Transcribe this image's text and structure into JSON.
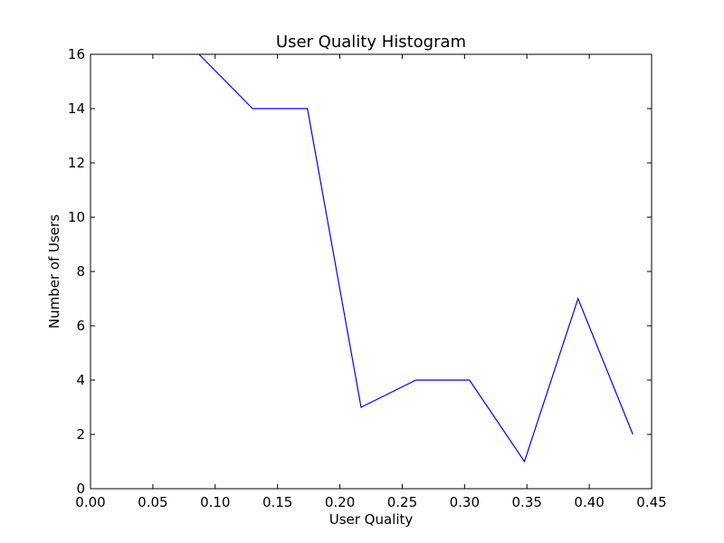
{
  "chart_data": {
    "type": "line",
    "title": "User Quality Histogram",
    "xlabel": "User Quality",
    "ylabel": "Number of Users",
    "xlim": [
      0,
      0.45
    ],
    "ylim": [
      0,
      16
    ],
    "x_ticks": [
      "0.00",
      "0.05",
      "0.10",
      "0.15",
      "0.20",
      "0.25",
      "0.30",
      "0.35",
      "0.40",
      "0.45"
    ],
    "y_ticks": [
      "0",
      "2",
      "4",
      "6",
      "8",
      "10",
      "12",
      "14",
      "16"
    ],
    "grid": false,
    "series": [
      {
        "color": "#0000ff",
        "x": [
          0.087,
          0.13,
          0.174,
          0.217,
          0.261,
          0.304,
          0.348,
          0.391,
          0.435
        ],
        "y": [
          16,
          14,
          14,
          3,
          4,
          4,
          1,
          7,
          2
        ]
      }
    ]
  }
}
